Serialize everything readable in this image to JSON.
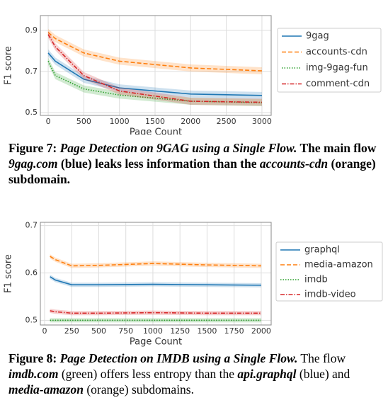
{
  "chart_data": [
    {
      "type": "line",
      "x_label": "Page Count",
      "y_label": "F1 score",
      "x": [
        0,
        100,
        500,
        1000,
        2000,
        3000
      ],
      "series": [
        {
          "name": "9gag",
          "color": "#1f77b4",
          "dash": "solid",
          "values": [
            0.79,
            0.75,
            0.662,
            0.62,
            0.59,
            0.583
          ]
        },
        {
          "name": "accounts-cdn",
          "color": "#ff7f0e",
          "dash": "dashed",
          "values": [
            0.89,
            0.86,
            0.79,
            0.75,
            0.717,
            0.703
          ]
        },
        {
          "name": "img-9gag-fun",
          "color": "#2ca02c",
          "dash": "dotted",
          "values": [
            0.75,
            0.68,
            0.615,
            0.585,
            0.555,
            0.548
          ]
        },
        {
          "name": "comment-cdn",
          "color": "#d62728",
          "dash": "dashdot",
          "values": [
            0.88,
            0.82,
            0.68,
            0.605,
            0.555,
            0.55
          ]
        }
      ],
      "xlim": [
        -110,
        3130
      ],
      "xticks": [
        0,
        500,
        1000,
        1500,
        2000,
        2500,
        3000
      ],
      "ylim": [
        0.486,
        0.972
      ],
      "yticks": [
        0.5,
        0.7,
        0.9
      ],
      "grid": true,
      "legend": "right"
    },
    {
      "type": "line",
      "x_label": "Page Count",
      "y_label": "F1 score",
      "x": [
        50,
        100,
        250,
        500,
        1000,
        1500,
        2000
      ],
      "series": [
        {
          "name": "graphql",
          "color": "#1f77b4",
          "dash": "solid",
          "values": [
            0.592,
            0.585,
            0.575,
            0.575,
            0.576,
            0.575,
            0.574
          ]
        },
        {
          "name": "media-amazon",
          "color": "#ff7f0e",
          "dash": "dashed",
          "values": [
            0.635,
            0.628,
            0.615,
            0.616,
            0.62,
            0.617,
            0.615
          ]
        },
        {
          "name": "imdb",
          "color": "#2ca02c",
          "dash": "dotted",
          "values": [
            0.5,
            0.5,
            0.5,
            0.5,
            0.5,
            0.5,
            0.5
          ]
        },
        {
          "name": "imdb-video",
          "color": "#d62728",
          "dash": "dashdot",
          "values": [
            0.52,
            0.518,
            0.515,
            0.515,
            0.516,
            0.515,
            0.515
          ]
        }
      ],
      "xlim": [
        -39,
        2092
      ],
      "xticks": [
        0,
        250,
        500,
        750,
        1000,
        1250,
        1500,
        1750,
        2000
      ],
      "ylim": [
        0.49,
        0.707
      ],
      "yticks": [
        0.5,
        0.6,
        0.7
      ],
      "grid": true,
      "legend": "right"
    }
  ],
  "captions": [
    [
      "Figure 7: ",
      "Page Detection on 9GAG using a Single Flow.",
      " The main flow ",
      "9gag.com",
      " (blue) leaks less information than the ",
      "accounts-cdn",
      " (orange) subdomain."
    ],
    [
      "Figure 8: ",
      "Page Detection on IMDB using a Single Flow.",
      " The flow ",
      "imdb.com",
      " (green) offers less entropy than the ",
      "api.graphql",
      " (blue) and ",
      "media-amazon",
      " (orange) subdomains."
    ]
  ]
}
